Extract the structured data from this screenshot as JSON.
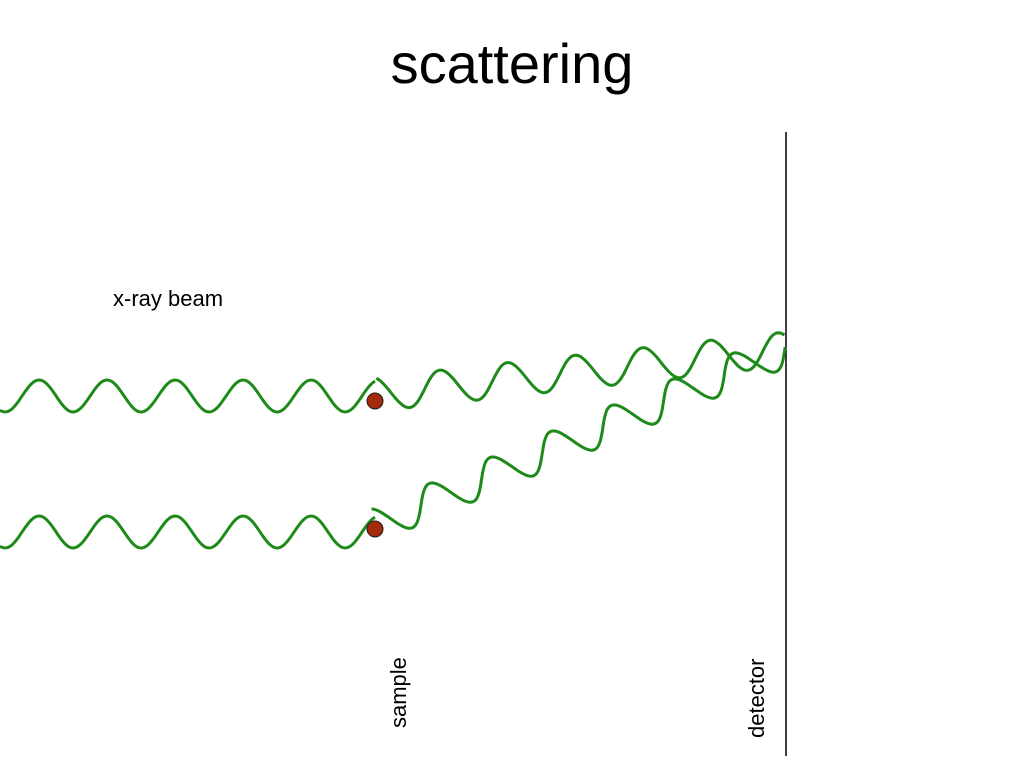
{
  "title": "scattering",
  "labels": {
    "beam": "x-ray beam",
    "sample": "sample",
    "detector": "detector"
  },
  "colors": {
    "wave": "#1e8a1a",
    "particle": "#a32a0a",
    "line": "#000000"
  }
}
